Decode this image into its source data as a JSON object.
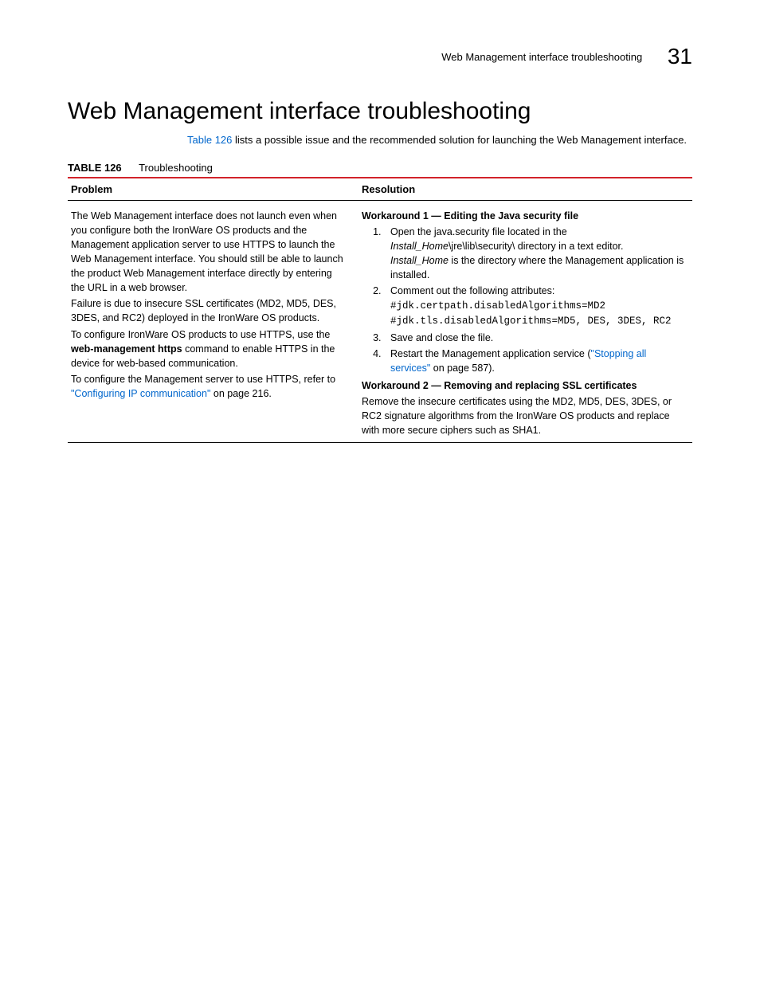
{
  "header": {
    "running_title": "Web Management interface troubleshooting",
    "page_number": "31"
  },
  "section": {
    "title": "Web Management interface troubleshooting",
    "intro_link": "Table 126",
    "intro_rest": " lists a possible issue and the recommended solution for launching the Web Management interface."
  },
  "table": {
    "label": "TABLE 126",
    "caption": "Troubleshooting",
    "columns": {
      "problem": "Problem",
      "resolution": "Resolution"
    },
    "problem": {
      "p1": "The Web Management interface does not launch even when you configure both the IronWare OS products and the Management application server to use HTTPS to launch the Web Management interface. You should still be able to launch the product Web Management interface directly by entering the URL in a web browser.",
      "p2": "Failure is due to insecure SSL certificates (MD2, MD5, DES, 3DES, and RC2) deployed in the IronWare OS products.",
      "p3a": "To configure IronWare OS products to use HTTPS, use the ",
      "p3b": "web-management https",
      "p3c": " command to enable HTTPS in the device for web-based communication.",
      "p4a": "To configure the Management server to use HTTPS, refer to ",
      "p4b": "\"Configuring IP communication\"",
      "p4c": " on page 216."
    },
    "resolution": {
      "w1_title": "Workaround 1 — Editing the Java security file",
      "step1a": "Open the java.security file located in the ",
      "step1b": "Install_Home",
      "step1c": "\\jre\\lib\\security\\ directory in a text editor.",
      "step1d": "Install_Home",
      "step1e": " is the directory where the Management application is installed.",
      "step2": "Comment out the following attributes:",
      "step2_code1": "#jdk.certpath.disabledAlgorithms=MD2",
      "step2_code2": "#jdk.tls.disabledAlgorithms=MD5, DES, 3DES, RC2",
      "step3": "Save and close the file.",
      "step4a": "Restart the Management application service (",
      "step4b": "\"Stopping all services\"",
      "step4c": " on page 587).",
      "w2_title": "Workaround 2 — Removing and replacing SSL certificates",
      "w2_body": "Remove the insecure certificates using the MD2, MD5, DES, 3DES, or RC2 signature algorithms from the IronWare OS products and replace with more secure ciphers such as SHA1."
    }
  }
}
